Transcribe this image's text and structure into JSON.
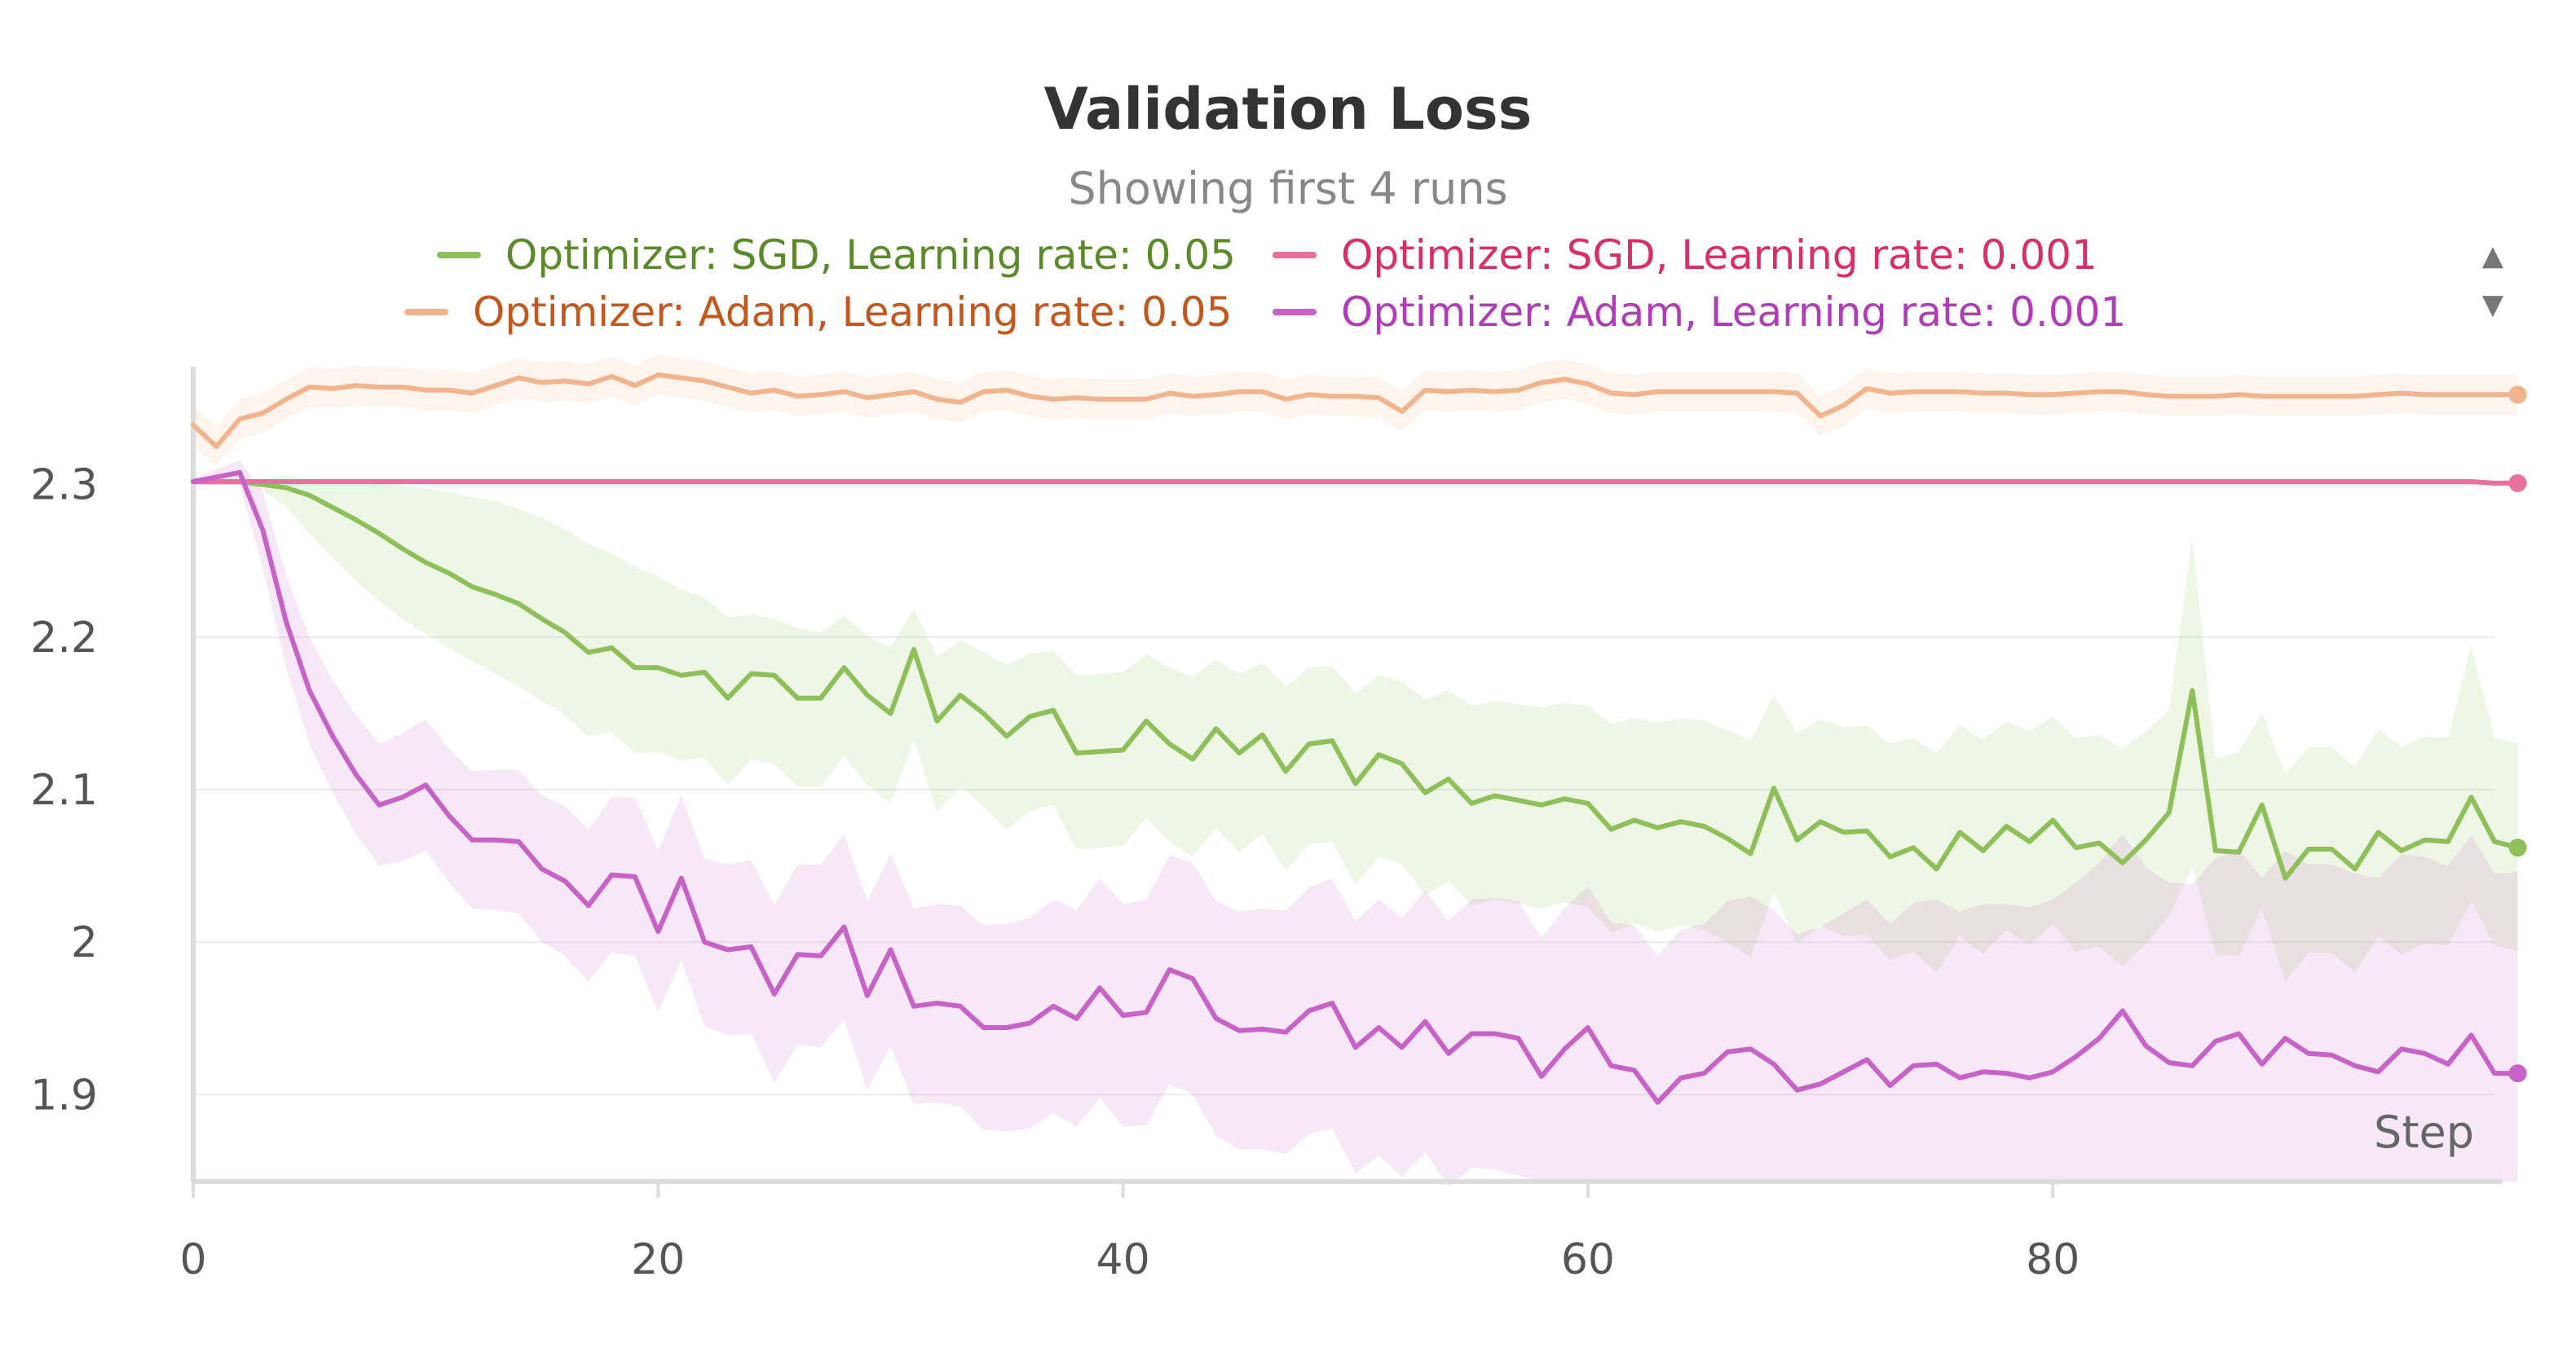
{
  "chart_data": {
    "type": "line",
    "title": "Validation Loss",
    "subtitle": "Showing first 4 runs",
    "xlabel": "Step",
    "ylabel": "",
    "xlim": [
      0,
      99
    ],
    "ylim": [
      1.843,
      2.372
    ],
    "x_ticks": [
      0,
      20,
      40,
      60,
      80
    ],
    "y_ticks": [
      1.9,
      2,
      2.1,
      2.2,
      2.3
    ],
    "y_tick_labels": [
      "1.9",
      "2",
      "2.1",
      "2.2",
      "2.3"
    ],
    "grid": true,
    "legend_position": "top",
    "legend_scroll": {
      "up": "▲",
      "down": "▼"
    },
    "colors": {
      "axis": "#dcdcdc",
      "grid": "#ececec",
      "tick_text": "#555555",
      "title": "#333333",
      "subtitle": "#888888"
    },
    "series": [
      {
        "name": "Optimizer: SGD, Learning rate: 0.05",
        "color": "#8ec05a",
        "label_color": "#5a8a2a",
        "values": [
          2.302,
          2.302,
          2.302,
          2.3,
          2.298,
          2.293,
          2.285,
          2.277,
          2.268,
          2.258,
          2.249,
          2.242,
          2.233,
          2.228,
          2.222,
          2.212,
          2.203,
          2.19,
          2.193,
          2.18,
          2.18,
          2.175,
          2.177,
          2.16,
          2.176,
          2.175,
          2.16,
          2.16,
          2.18,
          2.162,
          2.15,
          2.192,
          2.145,
          2.162,
          2.15,
          2.135,
          2.148,
          2.152,
          2.124,
          2.125,
          2.126,
          2.145,
          2.13,
          2.12,
          2.14,
          2.124,
          2.136,
          2.112,
          2.13,
          2.132,
          2.104,
          2.123,
          2.117,
          2.098,
          2.107,
          2.091,
          2.096,
          2.093,
          2.09,
          2.094,
          2.091,
          2.074,
          2.08,
          2.075,
          2.079,
          2.076,
          2.068,
          2.058,
          2.101,
          2.067,
          2.079,
          2.072,
          2.073,
          2.056,
          2.062,
          2.048,
          2.072,
          2.06,
          2.076,
          2.066,
          2.08,
          2.062,
          2.065,
          2.052,
          2.067,
          2.085,
          2.165,
          2.06,
          2.059,
          2.09,
          2.042,
          2.061,
          2.061,
          2.048,
          2.072,
          2.06,
          2.067,
          2.066,
          2.095,
          2.066,
          2.062
        ],
        "band_lower": [
          2.302,
          2.302,
          2.301,
          2.296,
          2.286,
          2.268,
          2.252,
          2.237,
          2.224,
          2.212,
          2.202,
          2.193,
          2.184,
          2.176,
          2.168,
          2.158,
          2.149,
          2.135,
          2.138,
          2.124,
          2.125,
          2.119,
          2.121,
          2.103,
          2.12,
          2.117,
          2.102,
          2.102,
          2.122,
          2.103,
          2.091,
          2.133,
          2.085,
          2.102,
          2.089,
          2.074,
          2.086,
          2.09,
          2.061,
          2.062,
          2.063,
          2.082,
          2.066,
          2.056,
          2.075,
          2.059,
          2.071,
          2.047,
          2.064,
          2.066,
          2.038,
          2.056,
          2.051,
          2.031,
          2.04,
          2.024,
          2.028,
          2.025,
          2.022,
          2.026,
          2.023,
          2.006,
          2.012,
          2.007,
          2.011,
          2.008,
          2.0,
          1.99,
          2.033,
          1.999,
          2.011,
          2.004,
          2.005,
          1.988,
          1.994,
          1.98,
          2.004,
          1.992,
          2.008,
          1.998,
          2.012,
          1.994,
          1.997,
          1.984,
          1.999,
          2.017,
          2.05,
          1.992,
          1.991,
          2.022,
          1.974,
          1.993,
          1.993,
          1.98,
          2.004,
          1.992,
          1.999,
          1.998,
          2.027,
          1.998,
          1.994
        ],
        "band_upper": [
          2.302,
          2.302,
          2.303,
          2.304,
          2.306,
          2.304,
          2.302,
          2.301,
          2.3,
          2.299,
          2.298,
          2.295,
          2.292,
          2.289,
          2.284,
          2.278,
          2.271,
          2.261,
          2.255,
          2.246,
          2.24,
          2.231,
          2.226,
          2.213,
          2.215,
          2.212,
          2.206,
          2.203,
          2.214,
          2.201,
          2.193,
          2.219,
          2.187,
          2.198,
          2.19,
          2.182,
          2.189,
          2.191,
          2.175,
          2.176,
          2.177,
          2.189,
          2.18,
          2.174,
          2.185,
          2.176,
          2.183,
          2.168,
          2.18,
          2.181,
          2.163,
          2.175,
          2.171,
          2.159,
          2.165,
          2.155,
          2.158,
          2.156,
          2.154,
          2.157,
          2.155,
          2.143,
          2.147,
          2.144,
          2.147,
          2.145,
          2.139,
          2.132,
          2.162,
          2.137,
          2.146,
          2.141,
          2.142,
          2.13,
          2.134,
          2.124,
          2.142,
          2.133,
          2.145,
          2.138,
          2.148,
          2.134,
          2.136,
          2.127,
          2.138,
          2.152,
          2.265,
          2.12,
          2.125,
          2.15,
          2.11,
          2.128,
          2.128,
          2.115,
          2.14,
          2.128,
          2.135,
          2.134,
          2.195,
          2.134,
          2.13
        ]
      },
      {
        "name": "Optimizer: SGD, Learning rate: 0.001",
        "color": "#e8709e",
        "label_color": "#d92e6a",
        "values": [
          2.302,
          2.302,
          2.302,
          2.302,
          2.302,
          2.302,
          2.302,
          2.302,
          2.302,
          2.302,
          2.302,
          2.302,
          2.302,
          2.302,
          2.302,
          2.302,
          2.302,
          2.302,
          2.302,
          2.302,
          2.302,
          2.302,
          2.302,
          2.302,
          2.302,
          2.302,
          2.302,
          2.302,
          2.302,
          2.302,
          2.302,
          2.302,
          2.302,
          2.302,
          2.302,
          2.302,
          2.302,
          2.302,
          2.302,
          2.302,
          2.302,
          2.302,
          2.302,
          2.302,
          2.302,
          2.302,
          2.302,
          2.302,
          2.302,
          2.302,
          2.302,
          2.302,
          2.302,
          2.302,
          2.302,
          2.302,
          2.302,
          2.302,
          2.302,
          2.302,
          2.302,
          2.302,
          2.302,
          2.302,
          2.302,
          2.302,
          2.302,
          2.302,
          2.302,
          2.302,
          2.302,
          2.302,
          2.302,
          2.302,
          2.302,
          2.302,
          2.302,
          2.302,
          2.302,
          2.302,
          2.302,
          2.302,
          2.302,
          2.302,
          2.302,
          2.302,
          2.302,
          2.302,
          2.302,
          2.302,
          2.302,
          2.302,
          2.302,
          2.302,
          2.302,
          2.302,
          2.302,
          2.302,
          2.302,
          2.301,
          2.301
        ]
      },
      {
        "name": "Optimizer: Adam, Learning rate: 0.05",
        "color": "#f2b48c",
        "label_color": "#c4581c",
        "values": [
          2.339,
          2.325,
          2.343,
          2.347,
          2.356,
          2.364,
          2.363,
          2.365,
          2.364,
          2.364,
          2.362,
          2.362,
          2.36,
          2.365,
          2.37,
          2.367,
          2.368,
          2.366,
          2.371,
          2.365,
          2.372,
          2.37,
          2.368,
          2.364,
          2.36,
          2.362,
          2.358,
          2.359,
          2.361,
          2.357,
          2.359,
          2.361,
          2.356,
          2.354,
          2.361,
          2.362,
          2.358,
          2.356,
          2.357,
          2.356,
          2.356,
          2.356,
          2.36,
          2.358,
          2.359,
          2.361,
          2.361,
          2.356,
          2.359,
          2.358,
          2.358,
          2.357,
          2.348,
          2.362,
          2.361,
          2.362,
          2.361,
          2.362,
          2.367,
          2.369,
          2.366,
          2.36,
          2.359,
          2.361,
          2.361,
          2.361,
          2.361,
          2.361,
          2.361,
          2.36,
          2.345,
          2.352,
          2.363,
          2.36,
          2.361,
          2.361,
          2.361,
          2.36,
          2.36,
          2.359,
          2.359,
          2.36,
          2.361,
          2.361,
          2.359,
          2.358,
          2.358,
          2.358,
          2.359,
          2.358,
          2.358,
          2.358,
          2.358,
          2.358,
          2.359,
          2.36,
          2.359,
          2.359,
          2.359,
          2.359,
          2.359
        ],
        "band_lower": [
          2.326,
          2.312,
          2.33,
          2.334,
          2.343,
          2.351,
          2.35,
          2.352,
          2.351,
          2.351,
          2.349,
          2.349,
          2.347,
          2.352,
          2.357,
          2.354,
          2.355,
          2.353,
          2.358,
          2.352,
          2.359,
          2.357,
          2.355,
          2.351,
          2.347,
          2.349,
          2.345,
          2.346,
          2.348,
          2.344,
          2.346,
          2.348,
          2.343,
          2.341,
          2.348,
          2.349,
          2.345,
          2.343,
          2.344,
          2.343,
          2.343,
          2.343,
          2.347,
          2.345,
          2.346,
          2.348,
          2.348,
          2.343,
          2.346,
          2.345,
          2.345,
          2.344,
          2.335,
          2.349,
          2.348,
          2.349,
          2.348,
          2.349,
          2.354,
          2.356,
          2.353,
          2.347,
          2.346,
          2.348,
          2.348,
          2.348,
          2.348,
          2.348,
          2.348,
          2.347,
          2.332,
          2.339,
          2.35,
          2.347,
          2.348,
          2.348,
          2.348,
          2.347,
          2.347,
          2.346,
          2.346,
          2.347,
          2.348,
          2.348,
          2.346,
          2.345,
          2.345,
          2.345,
          2.346,
          2.345,
          2.345,
          2.345,
          2.345,
          2.345,
          2.346,
          2.347,
          2.346,
          2.346,
          2.346,
          2.346,
          2.346
        ],
        "band_upper": [
          2.352,
          2.338,
          2.356,
          2.36,
          2.369,
          2.377,
          2.376,
          2.378,
          2.377,
          2.377,
          2.375,
          2.375,
          2.373,
          2.378,
          2.383,
          2.38,
          2.381,
          2.379,
          2.384,
          2.378,
          2.385,
          2.383,
          2.381,
          2.377,
          2.373,
          2.375,
          2.371,
          2.372,
          2.374,
          2.37,
          2.372,
          2.374,
          2.369,
          2.367,
          2.374,
          2.375,
          2.371,
          2.369,
          2.37,
          2.369,
          2.369,
          2.369,
          2.373,
          2.371,
          2.372,
          2.374,
          2.374,
          2.369,
          2.372,
          2.371,
          2.371,
          2.37,
          2.361,
          2.375,
          2.374,
          2.375,
          2.374,
          2.375,
          2.38,
          2.382,
          2.379,
          2.373,
          2.372,
          2.374,
          2.374,
          2.374,
          2.374,
          2.374,
          2.374,
          2.373,
          2.358,
          2.365,
          2.376,
          2.373,
          2.374,
          2.374,
          2.374,
          2.373,
          2.373,
          2.372,
          2.372,
          2.373,
          2.374,
          2.374,
          2.372,
          2.371,
          2.371,
          2.371,
          2.372,
          2.371,
          2.371,
          2.371,
          2.371,
          2.371,
          2.372,
          2.373,
          2.372,
          2.372,
          2.372,
          2.372,
          2.372
        ]
      },
      {
        "name": "Optimizer: Adam, Learning rate: 0.001",
        "color": "#c862c8",
        "label_color": "#b03cb8",
        "values": [
          2.302,
          2.305,
          2.308,
          2.27,
          2.21,
          2.165,
          2.135,
          2.11,
          2.09,
          2.095,
          2.103,
          2.083,
          2.067,
          2.067,
          2.066,
          2.048,
          2.04,
          2.024,
          2.044,
          2.043,
          2.007,
          2.042,
          2.0,
          1.995,
          1.997,
          1.966,
          1.992,
          1.991,
          2.01,
          1.965,
          1.995,
          1.958,
          1.96,
          1.958,
          1.944,
          1.944,
          1.947,
          1.958,
          1.95,
          1.97,
          1.952,
          1.954,
          1.982,
          1.976,
          1.95,
          1.942,
          1.943,
          1.941,
          1.955,
          1.96,
          1.931,
          1.944,
          1.931,
          1.948,
          1.927,
          1.94,
          1.94,
          1.937,
          1.912,
          1.93,
          1.944,
          1.919,
          1.916,
          1.895,
          1.911,
          1.914,
          1.928,
          1.93,
          1.92,
          1.903,
          1.907,
          1.915,
          1.923,
          1.906,
          1.919,
          1.92,
          1.911,
          1.915,
          1.914,
          1.911,
          1.915,
          1.925,
          1.937,
          1.955,
          1.932,
          1.921,
          1.919,
          1.935,
          1.94,
          1.92,
          1.937,
          1.927,
          1.926,
          1.919,
          1.915,
          1.93,
          1.927,
          1.92,
          1.939,
          1.914,
          1.914
        ],
        "band_lower": [
          2.3,
          2.3,
          2.3,
          2.245,
          2.18,
          2.13,
          2.098,
          2.071,
          2.05,
          2.053,
          2.06,
          2.039,
          2.022,
          2.021,
          2.019,
          2.0,
          1.991,
          1.974,
          1.993,
          1.991,
          1.954,
          1.988,
          1.945,
          1.939,
          1.94,
          1.908,
          1.933,
          1.931,
          1.949,
          1.903,
          1.932,
          1.894,
          1.895,
          1.892,
          1.877,
          1.876,
          1.878,
          1.888,
          1.879,
          1.898,
          1.879,
          1.88,
          1.907,
          1.9,
          1.873,
          1.864,
          1.864,
          1.861,
          1.874,
          1.878,
          1.848,
          1.86,
          1.846,
          1.862,
          1.84,
          1.852,
          1.851,
          1.847,
          1.843,
          1.843,
          1.843,
          1.843,
          1.843,
          1.843,
          1.843,
          1.843,
          1.843,
          1.843,
          1.843,
          1.843,
          1.843,
          1.843,
          1.843,
          1.843,
          1.843,
          1.843,
          1.843,
          1.843,
          1.843,
          1.843,
          1.843,
          1.843,
          1.843,
          1.843,
          1.843,
          1.843,
          1.843,
          1.843,
          1.843,
          1.843,
          1.843,
          1.843,
          1.843,
          1.843,
          1.843,
          1.843,
          1.843,
          1.843,
          1.843,
          1.843,
          1.843
        ],
        "band_upper": [
          2.304,
          2.31,
          2.316,
          2.295,
          2.24,
          2.2,
          2.172,
          2.149,
          2.13,
          2.137,
          2.146,
          2.127,
          2.112,
          2.113,
          2.113,
          2.096,
          2.089,
          2.074,
          2.095,
          2.095,
          2.06,
          2.096,
          2.055,
          2.051,
          2.054,
          2.024,
          2.051,
          2.051,
          2.071,
          2.027,
          2.058,
          2.022,
          2.025,
          2.024,
          2.011,
          2.012,
          2.016,
          2.028,
          2.021,
          2.042,
          2.025,
          2.028,
          2.057,
          2.052,
          2.027,
          2.02,
          2.022,
          2.021,
          2.036,
          2.042,
          2.014,
          2.028,
          2.016,
          2.034,
          2.014,
          2.028,
          2.029,
          2.027,
          2.003,
          2.022,
          2.037,
          2.013,
          2.011,
          1.991,
          2.008,
          2.012,
          2.027,
          2.03,
          2.021,
          2.005,
          2.01,
          2.019,
          2.028,
          2.012,
          2.026,
          2.028,
          2.02,
          2.025,
          2.025,
          2.023,
          2.028,
          2.039,
          2.052,
          2.071,
          2.049,
          2.039,
          2.038,
          2.055,
          2.061,
          2.042,
          2.06,
          2.051,
          2.051,
          2.045,
          2.042,
          2.058,
          2.056,
          2.05,
          2.07,
          2.045,
          2.046
        ]
      }
    ]
  }
}
